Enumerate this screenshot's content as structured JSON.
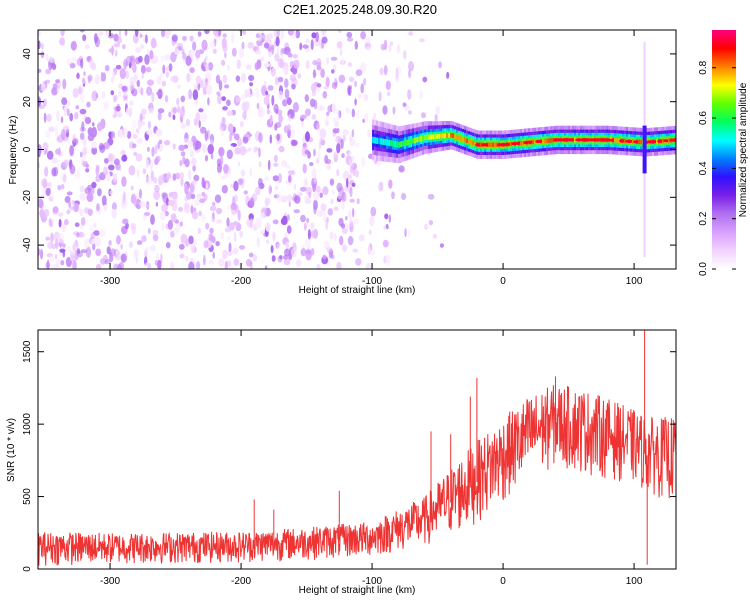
{
  "title": "C2E1.2025.248.09.30.R20",
  "chart_data": [
    {
      "type": "heatmap",
      "name": "spectrogram",
      "xlabel": "Height of straight line (km)",
      "ylabel": "Frequency (Hz)",
      "xlim": [
        -355,
        132
      ],
      "ylim": [
        -50,
        50
      ],
      "xticks": [
        -300,
        -200,
        -100,
        0,
        100
      ],
      "yticks": [
        -40,
        -20,
        0,
        20,
        40
      ],
      "xtick_labels": [
        "-300",
        "-200",
        "-100",
        "0",
        "100"
      ],
      "ytick_labels": [
        "-40",
        "-20",
        "0",
        "20",
        "40"
      ],
      "colorbar": {
        "label": "Normalized spectral amplitude",
        "range": [
          0.0,
          0.95
        ],
        "ticks": [
          0.0,
          0.2,
          0.4,
          0.6,
          0.8
        ],
        "tick_labels": [
          "0.0",
          "0.2",
          "0.4",
          "0.6",
          "0.8"
        ],
        "colors": [
          "#ffffff",
          "#f2d2ff",
          "#d9a0ff",
          "#b070f0",
          "#7a20e8",
          "#3010ff",
          "#0080ff",
          "#00ffff",
          "#00ff60",
          "#60ff00",
          "#ffff00",
          "#ff8000",
          "#ff0000",
          "#ff0080"
        ]
      },
      "noise_region": {
        "x_range": [
          -355,
          -35
        ],
        "freq_range": [
          -50,
          50
        ],
        "typical_amplitude": 0.05
      },
      "signal_band": {
        "center_freq": [
          {
            "x": -100,
            "f": 4
          },
          {
            "x": -80,
            "f": 2
          },
          {
            "x": -60,
            "f": 5
          },
          {
            "x": -40,
            "f": 6
          },
          {
            "x": -20,
            "f": 2
          },
          {
            "x": 0,
            "f": 2
          },
          {
            "x": 40,
            "f": 4
          },
          {
            "x": 80,
            "f": 4
          },
          {
            "x": 108,
            "f": 3
          },
          {
            "x": 132,
            "f": 4
          }
        ],
        "half_width_hz": 3,
        "peak_amplitude": 0.9,
        "spike_x": 108
      }
    },
    {
      "type": "line",
      "name": "snr",
      "xlabel": "Height of straight line (km)",
      "ylabel": "SNR (10 * v/v)",
      "xlim": [
        -355,
        132
      ],
      "ylim": [
        0,
        1650
      ],
      "xticks": [
        -300,
        -200,
        -100,
        0,
        100
      ],
      "yticks": [
        0,
        500,
        1000,
        1500
      ],
      "xtick_labels": [
        "-300",
        "-200",
        "-100",
        "0",
        "100"
      ],
      "ytick_labels": [
        "0",
        "500",
        "1000",
        "1500"
      ],
      "color": "#ee3333",
      "envelope": [
        {
          "x": -355,
          "low": 20,
          "high": 260
        },
        {
          "x": -300,
          "low": 30,
          "high": 250
        },
        {
          "x": -200,
          "low": 40,
          "high": 260
        },
        {
          "x": -150,
          "low": 60,
          "high": 290
        },
        {
          "x": -100,
          "low": 80,
          "high": 330
        },
        {
          "x": -60,
          "low": 150,
          "high": 500
        },
        {
          "x": -30,
          "low": 250,
          "high": 800
        },
        {
          "x": 0,
          "low": 450,
          "high": 1050
        },
        {
          "x": 20,
          "low": 600,
          "high": 1200
        },
        {
          "x": 40,
          "low": 700,
          "high": 1280
        },
        {
          "x": 60,
          "low": 650,
          "high": 1250
        },
        {
          "x": 80,
          "low": 620,
          "high": 1180
        },
        {
          "x": 100,
          "low": 580,
          "high": 1100
        },
        {
          "x": 110,
          "low": 520,
          "high": 1050
        },
        {
          "x": 132,
          "low": 450,
          "high": 1050
        }
      ],
      "spikes": [
        {
          "x": -190,
          "value": 480
        },
        {
          "x": -175,
          "value": 410
        },
        {
          "x": -125,
          "value": 540
        },
        {
          "x": -55,
          "value": 950
        },
        {
          "x": -40,
          "value": 930
        },
        {
          "x": -25,
          "value": 1190
        },
        {
          "x": -20,
          "value": 1320
        },
        {
          "x": 40,
          "value": 1330
        },
        {
          "x": 108,
          "value": 1650
        },
        {
          "x": 110,
          "value": 30
        }
      ]
    }
  ]
}
